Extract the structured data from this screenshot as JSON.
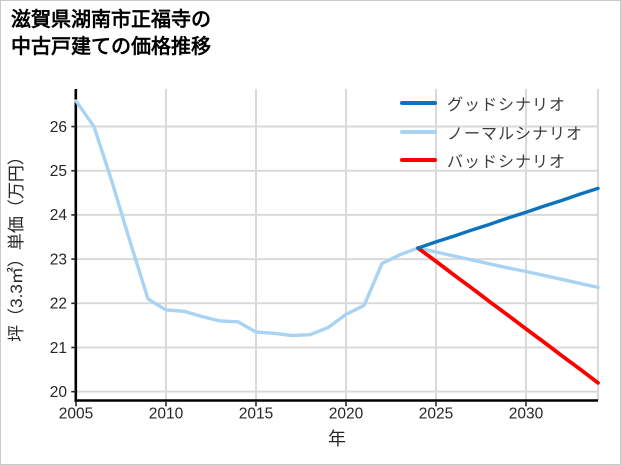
{
  "page": {
    "background": "#ffffff",
    "border_color": "#c9c9c9"
  },
  "title": {
    "line1": "滋賀県湖南市正福寺の",
    "line2": "中古戸建ての価格推移"
  },
  "chart_data": {
    "type": "line",
    "title": "滋賀県湖南市正福寺の中古戸建ての価格推移",
    "xlabel": "年",
    "ylabel": "坪（3.3㎡）単価（万円）",
    "xlim": [
      2005,
      2034
    ],
    "ylim": [
      19.8,
      26.85
    ],
    "xticks": [
      2005,
      2010,
      2015,
      2020,
      2025,
      2030
    ],
    "yticks": [
      20,
      21,
      22,
      23,
      24,
      25,
      26
    ],
    "grid": true,
    "grid_color": "#d9d9d9",
    "axis_color": "#000000",
    "tick_label_color": "#262626",
    "legend_position": "upper-right",
    "series": [
      {
        "name": "グッドシナリオ",
        "color": "#0d73bd",
        "width": 3.4,
        "x": [
          2024,
          2025,
          2026,
          2027,
          2028,
          2029,
          2030,
          2031,
          2032,
          2033,
          2034
        ],
        "values": [
          23.25,
          23.39,
          23.52,
          23.66,
          23.79,
          23.93,
          24.06,
          24.2,
          24.33,
          24.47,
          24.6
        ]
      },
      {
        "name": "ノーマルシナリオ",
        "color": "#a9d3f3",
        "width": 3.4,
        "x": [
          2005,
          2006,
          2007,
          2008,
          2009,
          2010,
          2011,
          2012,
          2013,
          2014,
          2015,
          2016,
          2017,
          2018,
          2019,
          2020,
          2021,
          2022,
          2023,
          2024,
          2025,
          2026,
          2027,
          2028,
          2029,
          2030,
          2031,
          2032,
          2033,
          2034
        ],
        "values": [
          26.58,
          26.0,
          24.75,
          23.4,
          22.1,
          21.85,
          21.82,
          21.7,
          21.6,
          21.58,
          21.35,
          21.32,
          21.27,
          21.29,
          21.45,
          21.75,
          21.95,
          22.9,
          23.1,
          23.25,
          23.16,
          23.07,
          22.98,
          22.89,
          22.8,
          22.72,
          22.63,
          22.54,
          22.45,
          22.36
        ]
      },
      {
        "name": "バッドシナリオ",
        "color": "#fd0000",
        "width": 3.8,
        "x": [
          2024,
          2025,
          2026,
          2027,
          2028,
          2029,
          2030,
          2031,
          2032,
          2033,
          2034
        ],
        "values": [
          23.25,
          22.95,
          22.64,
          22.34,
          22.03,
          21.73,
          21.42,
          21.12,
          20.81,
          20.51,
          20.2
        ]
      }
    ]
  }
}
